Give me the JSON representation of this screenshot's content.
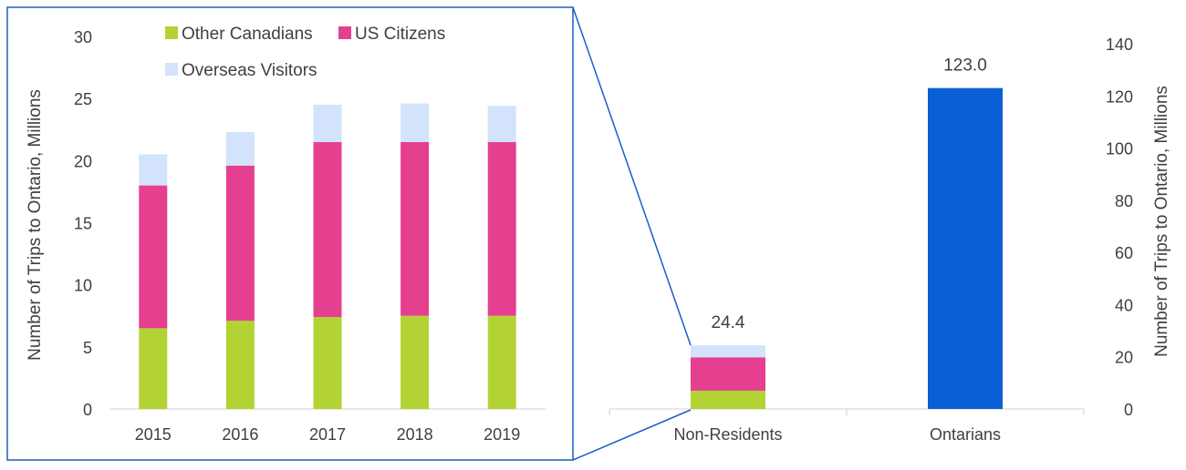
{
  "colors": {
    "other_canadians": "#b3d335",
    "us_citizens": "#e5408f",
    "overseas_visitors": "#d2e3fb",
    "ontarians": "#0b5fd6",
    "frame": "#1f5bc4",
    "axis": "#d0d0d0"
  },
  "chart_data": [
    {
      "type": "bar",
      "stacked": true,
      "categories": [
        "2015",
        "2016",
        "2017",
        "2018",
        "2019"
      ],
      "series": [
        {
          "name": "Other Canadians",
          "color_key": "other_canadians",
          "values": [
            6.5,
            7.1,
            7.4,
            7.5,
            7.5
          ]
        },
        {
          "name": "US Citizens",
          "color_key": "us_citizens",
          "values": [
            11.5,
            12.5,
            14.1,
            14.0,
            14.0
          ]
        },
        {
          "name": "Overseas Visitors",
          "color_key": "overseas_visitors",
          "values": [
            2.5,
            2.7,
            3.0,
            3.1,
            2.9
          ]
        }
      ],
      "ylabel": "Number of Trips to Ontario, Millions",
      "ylim": [
        0,
        30
      ],
      "yticks": [
        0,
        5,
        10,
        15,
        20,
        25,
        30
      ],
      "legend_position": "top",
      "grid": false
    },
    {
      "type": "bar",
      "stacked": true,
      "categories": [
        "Non-Residents",
        "Ontarians"
      ],
      "series": [
        {
          "name": "Other Canadians",
          "color_key": "other_canadians",
          "values": [
            7.0,
            0
          ]
        },
        {
          "name": "US Citizens",
          "color_key": "us_citizens",
          "values": [
            12.8,
            0
          ]
        },
        {
          "name": "Overseas Visitors",
          "color_key": "overseas_visitors",
          "values": [
            4.6,
            0
          ]
        },
        {
          "name": "Ontarians",
          "color_key": "ontarians",
          "values": [
            0,
            123.0
          ]
        }
      ],
      "totals_labels": [
        "24.4",
        "123.0"
      ],
      "ylabel": "Number of Trips to Ontario, Millions",
      "ylim": [
        0,
        140
      ],
      "yticks": [
        0,
        20,
        40,
        60,
        80,
        100,
        120,
        140
      ],
      "axis_side": "right",
      "grid": false
    }
  ]
}
